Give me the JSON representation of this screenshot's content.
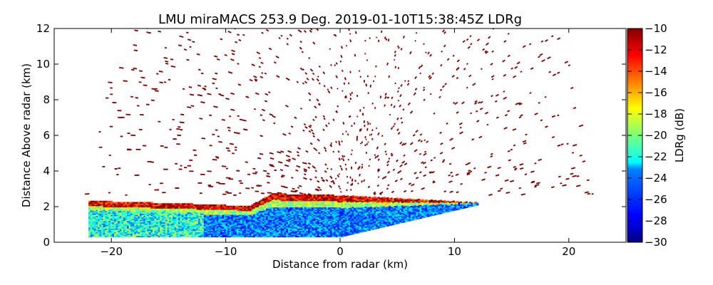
{
  "chart_data": {
    "type": "heatmap",
    "title": "LMU miraMACS 253.9 Deg. 2019-01-10T15:38:45Z  LDRg",
    "xlabel": "Distance from radar (km)",
    "ylabel": "Distance Above radar  (km)",
    "xlim": [
      -25,
      25
    ],
    "ylim": [
      0,
      12
    ],
    "x_ticks": [
      -20,
      -10,
      0,
      10,
      20
    ],
    "x_tick_labels": [
      "−20",
      "−10",
      "0",
      "10",
      "20"
    ],
    "y_ticks": [
      0,
      2,
      4,
      6,
      8,
      10,
      12
    ],
    "y_tick_labels": [
      "0",
      "2",
      "4",
      "6",
      "8",
      "10",
      "12"
    ],
    "grid": false,
    "colorbar": {
      "label": "LDRg (dB)",
      "range": [
        -30,
        -10
      ],
      "colormap": "jet",
      "ticks": [
        -30,
        -28,
        -26,
        -24,
        -22,
        -20,
        -18,
        -16,
        -14,
        -12,
        -10
      ],
      "tick_labels": [
        "−30",
        "−28",
        "−26",
        "−24",
        "−22",
        "−20",
        "−18",
        "−16",
        "−14",
        "−12",
        "−10"
      ]
    },
    "scan": {
      "type": "RHI",
      "azimuth_deg": 253.9,
      "max_range_km": 22.3,
      "dense_layer": {
        "top_km_at_x": [
          [
            -22,
            2.3
          ],
          [
            -12,
            2.1
          ],
          [
            -8,
            2.0
          ],
          [
            -6,
            2.7
          ],
          [
            0,
            2.6
          ],
          [
            6,
            2.4
          ],
          [
            12,
            2.2
          ]
        ],
        "bottom_km_at_x": [
          [
            -22,
            0.3
          ],
          [
            0,
            0.3
          ],
          [
            12,
            2.1
          ]
        ],
        "core_value_db": -25,
        "top_edge_value_db": -12
      },
      "sparse_echo_value_db": -10
    }
  }
}
